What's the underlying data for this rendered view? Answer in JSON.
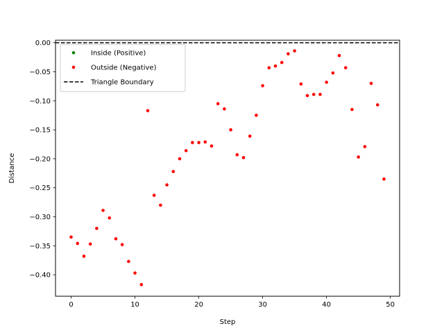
{
  "chart_data": {
    "type": "scatter",
    "title": "",
    "xlabel": "Step",
    "ylabel": "Distance",
    "xlim": [
      -2.45,
      51.45
    ],
    "ylim": [
      -0.437,
      0.0044
    ],
    "xticks": [
      0,
      10,
      20,
      30,
      40,
      50
    ],
    "xtick_labels": [
      "0",
      "10",
      "20",
      "30",
      "40",
      "50"
    ],
    "yticks": [
      0.0,
      -0.05,
      -0.1,
      -0.15,
      -0.2,
      -0.25,
      -0.3,
      -0.35,
      -0.4
    ],
    "ytick_labels": [
      "0.00",
      "−0.05",
      "−0.10",
      "−0.15",
      "−0.20",
      "−0.25",
      "−0.30",
      "−0.35",
      "−0.40"
    ],
    "grid": false,
    "legend_position": "upper left",
    "legend": [
      {
        "label": "Inside (Positive)",
        "kind": "marker",
        "color": "#008000"
      },
      {
        "label": "Outside (Negative)",
        "kind": "marker",
        "color": "#ff0000"
      },
      {
        "label": "Triangle Boundary",
        "kind": "dashed-line",
        "color": "#000000"
      }
    ],
    "reference_lines": [
      {
        "y": 0.0,
        "style": "dashed",
        "color": "#000000"
      }
    ],
    "series": [
      {
        "name": "Inside (Positive)",
        "color": "#008000",
        "x": [],
        "y": []
      },
      {
        "name": "Outside (Negative)",
        "color": "#ff0000",
        "x": [
          0,
          1,
          2,
          3,
          4,
          5,
          6,
          7,
          8,
          9,
          10,
          11,
          12,
          13,
          14,
          15,
          16,
          17,
          18,
          19,
          20,
          21,
          22,
          23,
          24,
          25,
          26,
          27,
          28,
          29,
          30,
          31,
          32,
          33,
          34,
          35,
          36,
          37,
          38,
          39,
          40,
          41,
          42,
          43,
          44,
          45,
          46,
          47,
          48,
          49
        ],
        "y": [
          -0.335,
          -0.346,
          -0.368,
          -0.347,
          -0.32,
          -0.289,
          -0.302,
          -0.338,
          -0.348,
          -0.377,
          -0.397,
          -0.417,
          -0.117,
          -0.263,
          -0.28,
          -0.245,
          -0.222,
          -0.2,
          -0.186,
          -0.172,
          -0.172,
          -0.171,
          -0.178,
          -0.105,
          -0.114,
          -0.15,
          -0.193,
          -0.198,
          -0.161,
          -0.125,
          -0.074,
          -0.043,
          -0.04,
          -0.034,
          -0.019,
          -0.014,
          -0.071,
          -0.091,
          -0.089,
          -0.089,
          -0.068,
          -0.052,
          -0.022,
          -0.043,
          -0.115,
          -0.197,
          -0.179,
          -0.07,
          -0.107,
          -0.235
        ]
      }
    ]
  }
}
